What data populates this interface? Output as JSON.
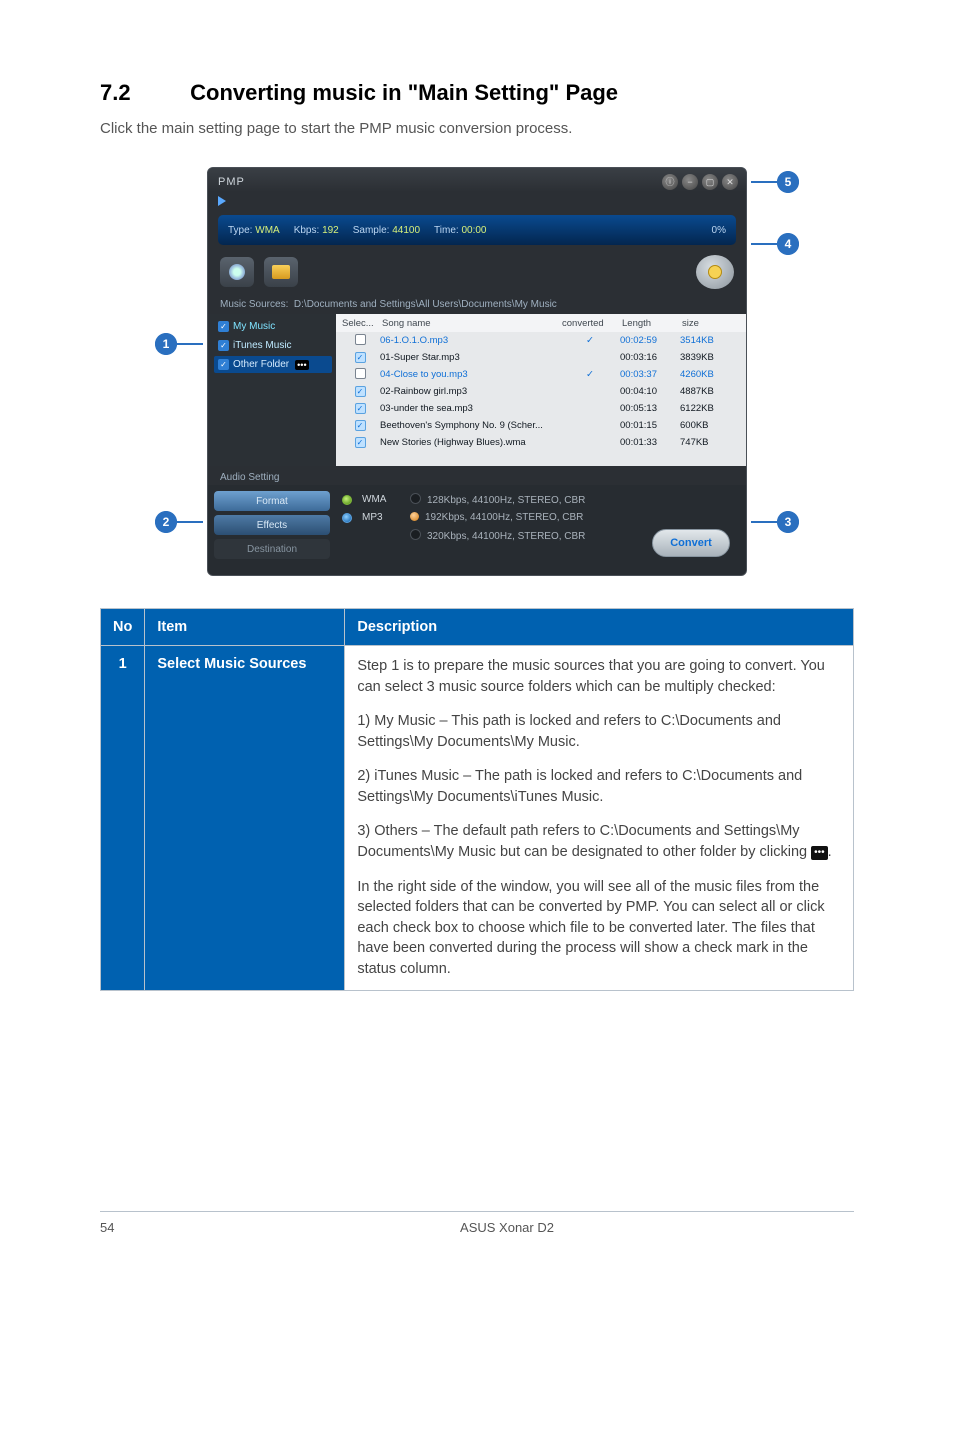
{
  "section": {
    "num": "7.2",
    "title": "Converting music in \"Main Setting\" Page"
  },
  "intro": "Click the main setting page to start the PMP music conversion process.",
  "callouts": {
    "c1": "1",
    "c2": "2",
    "c3": "3",
    "c4": "4",
    "c5": "5"
  },
  "pmp": {
    "title": "PMP",
    "winbuttons": [
      "ⓘ",
      "−",
      "▢",
      "✕"
    ],
    "typebar": {
      "type_label": "Type:",
      "type_val": "WMA",
      "kbps_label": "Kbps:",
      "kbps_val": "192",
      "sample_label": "Sample:",
      "sample_val": "44100",
      "time_label": "Time:",
      "time_val": "00:00",
      "progress": "0%"
    },
    "sources_label": "Music Sources:",
    "sources_path": "D:\\Documents and Settings\\All Users\\Documents\\My Music",
    "side": [
      {
        "label": "My Music",
        "checked": true,
        "hl": true
      },
      {
        "label": "iTunes Music",
        "checked": true,
        "hl": false
      },
      {
        "label": "Other Folder",
        "checked": true,
        "hl": false,
        "dots": "•••",
        "sel": true
      }
    ],
    "grid": {
      "head": [
        "Selec...",
        "Song name",
        "converted",
        "Length",
        "size"
      ],
      "rows": [
        {
          "chk": false,
          "name": "06-1.O.1.O.mp3",
          "conv": "✓",
          "len": "00:02:59",
          "size": "3514KB",
          "hl": true
        },
        {
          "chk": true,
          "name": "01-Super Star.mp3",
          "conv": "",
          "len": "00:03:16",
          "size": "3839KB",
          "hl": false
        },
        {
          "chk": false,
          "name": "04-Close to you.mp3",
          "conv": "✓",
          "len": "00:03:37",
          "size": "4260KB",
          "hl": true
        },
        {
          "chk": true,
          "name": "02-Rainbow girl.mp3",
          "conv": "",
          "len": "00:04:10",
          "size": "4887KB",
          "hl": false
        },
        {
          "chk": true,
          "name": "03-under the sea.mp3",
          "conv": "",
          "len": "00:05:13",
          "size": "6122KB",
          "hl": false
        },
        {
          "chk": true,
          "name": "Beethoven's Symphony No. 9 (Scher...",
          "conv": "",
          "len": "00:01:15",
          "size": "600KB",
          "hl": false
        },
        {
          "chk": true,
          "name": "New Stories (Highway Blues).wma",
          "conv": "",
          "len": "00:01:33",
          "size": "747KB",
          "hl": false
        }
      ]
    },
    "audio_label": "Audio Setting",
    "tabs": {
      "format": "Format",
      "effects": "Effects",
      "dest": "Destination"
    },
    "format": {
      "row1": {
        "lab": "WMA",
        "opt": "128Kbps, 44100Hz, STEREO, CBR"
      },
      "row2": {
        "lab": "MP3",
        "opt": "192Kbps, 44100Hz, STEREO, CBR"
      },
      "row3": {
        "opt": "320Kbps, 44100Hz, STEREO, CBR"
      }
    },
    "convert": "Convert"
  },
  "table": {
    "head": {
      "no": "No",
      "item": "Item",
      "desc": "Description"
    },
    "row1": {
      "no": "1",
      "item": "Select Music Sources",
      "p1": "Step 1 is to prepare the music sources that you are going to convert. You can select 3 music source folders which can be multiply checked:",
      "p2": "1) My Music – This path is locked and refers to C:\\Documents and Settings\\My Documents\\My Music.",
      "p3": "2) iTunes Music – The path is locked and refers to C:\\Documents and Settings\\My Documents\\iTunes Music.",
      "p4a": "3) Others – The default path refers to C:\\Documents and Settings\\My Documents\\My Music but can be designated to other folder by clicking ",
      "p4dots": "•••",
      "p4b": ".",
      "p5": "In the right side of the window, you will see all of the music files from the selected folders that can be converted by PMP. You can select all or click each check box to choose which file to be converted later. The files that have been converted during the process will show a check mark in the status column."
    }
  },
  "footer": {
    "page": "54",
    "title": "ASUS Xonar D2"
  },
  "colors": {
    "blue_header": "#0061b0",
    "callout": "#2a6fbf",
    "pmp_bg": "#2b2f34",
    "grid_bg": "#e7e9eb",
    "hl_blue": "#0f6fd6"
  }
}
